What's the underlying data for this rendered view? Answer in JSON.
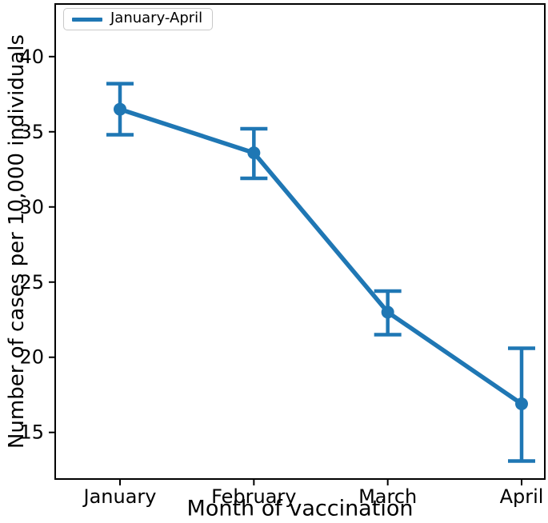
{
  "chart_data": {
    "type": "line",
    "title": "",
    "xlabel": "Month of vaccination",
    "ylabel": "Number of cases per 10,000 individuals",
    "categories": [
      "January",
      "February",
      "March",
      "April"
    ],
    "series": [
      {
        "name": "January-April",
        "values": [
          36.5,
          33.6,
          23.0,
          16.9
        ],
        "error_low": [
          34.8,
          31.9,
          21.5,
          13.1
        ],
        "error_high": [
          38.2,
          35.2,
          24.4,
          20.6
        ]
      }
    ],
    "y_ticks": [
      15,
      20,
      25,
      30,
      35,
      40
    ],
    "ylim": [
      11.9,
      43.5
    ],
    "grid": false,
    "legend": {
      "position": "upper left",
      "label": "January-April"
    }
  },
  "colors": {
    "line": "#1f77b4",
    "text": "#000000",
    "spine": "#000000",
    "legend_border": "#c9c9c9",
    "background": "#ffffff"
  }
}
